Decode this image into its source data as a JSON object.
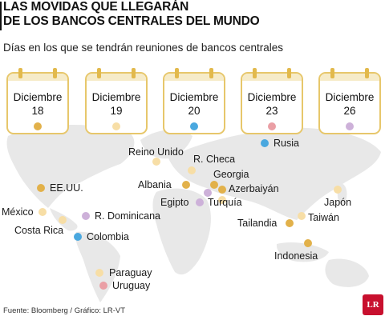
{
  "title": {
    "line1": "LAS MOVIDAS QUE LLEGARÁN",
    "line2": "DE LOS BANCOS CENTRALES DEL MUNDO"
  },
  "subtitle": "Días en los que se tendrán reuniones de bancos centrales",
  "colors": {
    "d18": "#e2b14a",
    "d19": "#f7dea6",
    "d20": "#4aa8df",
    "d23": "#ea9fa5",
    "d26": "#cdb1d9",
    "calendar_border": "#e7c76b",
    "map": "#e6e6e6"
  },
  "calendars": [
    {
      "month": "Diciembre",
      "day": "18"
    },
    {
      "month": "Diciembre",
      "day": "19"
    },
    {
      "month": "Diciembre",
      "day": "20"
    },
    {
      "month": "Diciembre",
      "day": "23"
    },
    {
      "month": "Diciembre",
      "day": "26"
    }
  ],
  "countries": {
    "eeuu": "EE.UU.",
    "mexico": "México",
    "costa_rica": "Costa Rica",
    "colombia": "Colombia",
    "rep_dominicana": "R. Dominicana",
    "paraguay": "Paraguay",
    "uruguay": "Uruguay",
    "reino_unido": "Reino Unido",
    "r_checa": "R. Checa",
    "albania": "Albania",
    "georgia": "Georgia",
    "azerbaiyan": "Azerbaiyán",
    "egipto": "Egipto",
    "turquia": "Turquía",
    "rusia": "Rusia",
    "tailandia": "Tailandia",
    "taiwan": "Taiwán",
    "japon": "Japón",
    "indonesia": "Indonesia"
  },
  "footer": "Fuente: Bloomberg  / Gráfico: LR-VT",
  "logo": "LR"
}
